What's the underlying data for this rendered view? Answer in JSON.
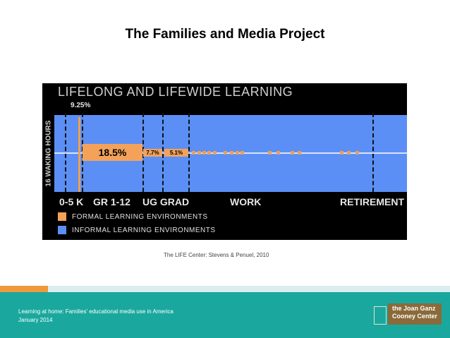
{
  "slide": {
    "title": "The Families and Media Project"
  },
  "figure": {
    "heading": "LIFELONG AND LIFEWIDE LEARNING",
    "y_label": "16 WAKING HOURS",
    "annotations": {
      "k": "9.25%",
      "gr": "18.5%",
      "ug": "7.7%",
      "grad": "5.1%"
    },
    "stages": {
      "k": "0-5 K",
      "gr": "GR 1-12",
      "ug": "UG GRAD",
      "work": "WORK",
      "retirement": "RETIREMENT"
    },
    "legend": {
      "formal": {
        "label": "FORMAL LEARNING ENVIRONMENTS",
        "color": "#f4a25a"
      },
      "informal": {
        "label": "INFORMAL LEARNING ENVIRONMENTS",
        "color": "#5b8ff5"
      }
    },
    "percentages": {
      "k": 9.25,
      "gr": 18.5,
      "ug": 7.7,
      "grad": 5.1
    }
  },
  "caption": "The LIFE Center: Stevens & Penuel, 2010",
  "footer": {
    "line1": "Learning at home: Families' educational media use in America",
    "line2": "January 2014",
    "logo_line1": "the Joan Ganz",
    "logo_line2": "Cooney Center"
  }
}
